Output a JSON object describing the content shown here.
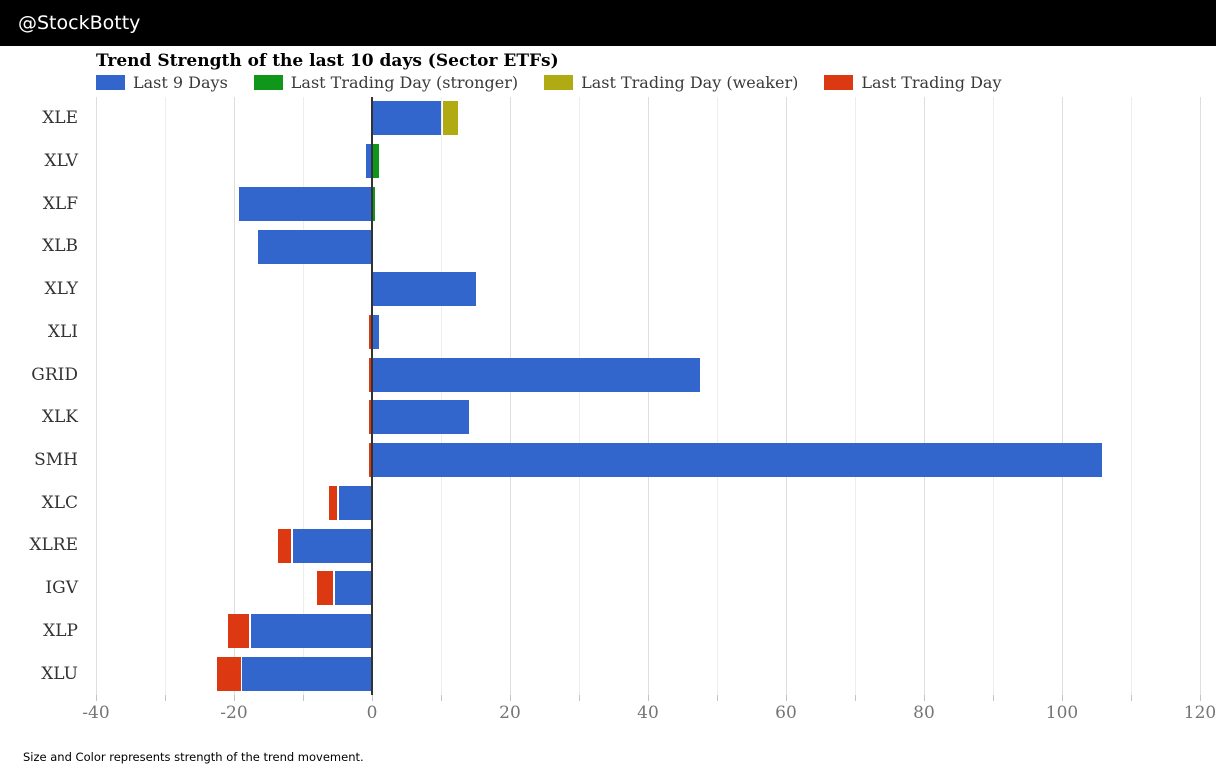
{
  "header": {
    "handle": "@StockBotty"
  },
  "title": "Trend Strength of the last 10 days (Sector ETFs)",
  "footer_note": "Size and Color represents strength of the trend movement.",
  "colors": {
    "blue": "#3366cc",
    "green": "#109618",
    "olive": "#b0ab12",
    "red": "#dc3912",
    "zero_line": "#333333",
    "gridline_minor": "#ededed",
    "gridline_major": "#dedede",
    "axis_label": "#757575",
    "category_label": "#333333"
  },
  "legend": {
    "items": [
      {
        "label": "Last 9 Days",
        "color": "#3366cc"
      },
      {
        "label": "Last Trading Day (stronger)",
        "color": "#109618"
      },
      {
        "label": "Last Trading Day (weaker)",
        "color": "#b0ab12"
      },
      {
        "label": "Last Trading Day",
        "color": "#dc3912"
      }
    ]
  },
  "chart_data": {
    "type": "bar",
    "orientation": "horizontal",
    "stacked": true,
    "title": "Trend Strength of the last 10 days (Sector ETFs)",
    "note": "Size and Color represents strength of the trend movement.",
    "xlabel": "",
    "ylabel": "",
    "xlim": [
      -40,
      120
    ],
    "xticks": [
      -40,
      -20,
      0,
      20,
      40,
      60,
      80,
      100,
      120
    ],
    "gridline_step": 10,
    "grid": true,
    "legend_position": "top",
    "categories": [
      "XLE",
      "XLV",
      "XLF",
      "XLB",
      "XLY",
      "XLI",
      "GRID",
      "XLK",
      "SMH",
      "XLC",
      "XLRE",
      "IGV",
      "XLP",
      "XLU"
    ],
    "series": [
      {
        "name": "Last 9 Days",
        "color_key": "blue",
        "values": [
          10.0,
          -0.8,
          -19.3,
          -16.5,
          15.0,
          1.0,
          47.5,
          14.1,
          105.8,
          -4.8,
          -11.5,
          -5.4,
          -17.6,
          -18.8
        ]
      },
      {
        "name": "Last Trading Day",
        "values": [
          2.5,
          1.0,
          0.5,
          0,
          0,
          -0.5,
          -0.5,
          -0.5,
          -0.5,
          -1.4,
          -2.1,
          -2.6,
          -3.3,
          -3.6
        ],
        "types": [
          "weaker",
          "stronger",
          "stronger",
          "none",
          "none",
          "negative",
          "negative",
          "negative",
          "negative",
          "negative",
          "negative",
          "negative",
          "negative",
          "negative"
        ]
      }
    ]
  }
}
